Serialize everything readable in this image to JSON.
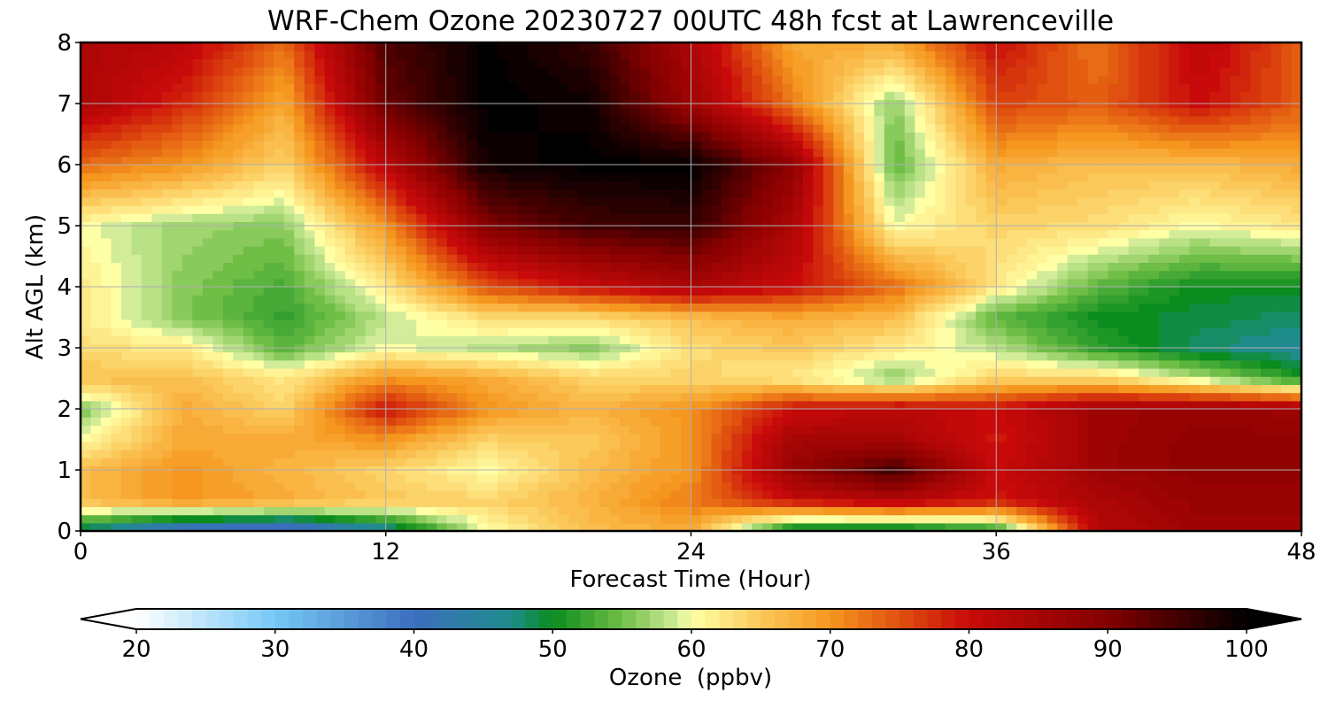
{
  "title": "WRF-Chem Ozone  20230727 00UTC 48h fcst at Lawrenceville",
  "chart_data": {
    "type": "heatmap",
    "title": "WRF-Chem Ozone  20230727 00UTC 48h fcst at Lawrenceville",
    "xlabel": "Forecast Time (Hour)",
    "ylabel": "Alt AGL (km)",
    "xlim": [
      0,
      48
    ],
    "ylim": [
      0,
      8
    ],
    "x_ticks": [
      "0",
      "12",
      "24",
      "36",
      "48"
    ],
    "y_ticks": [
      "0",
      "1",
      "2",
      "3",
      "4",
      "5",
      "6",
      "7",
      "8"
    ],
    "grid": true,
    "x": [
      0,
      4,
      8,
      12,
      16,
      20,
      24,
      28,
      32,
      36,
      40,
      44,
      48
    ],
    "y": [
      0,
      0.5,
      1,
      1.5,
      2,
      2.5,
      3,
      3.5,
      4,
      5,
      6,
      7,
      8
    ],
    "z": [
      [
        47,
        37,
        35,
        45,
        60,
        66,
        68,
        47,
        46,
        50,
        83,
        86,
        86
      ],
      [
        66,
        70,
        68,
        65,
        64,
        67,
        72,
        80,
        83,
        79,
        84,
        87,
        87
      ],
      [
        66,
        70,
        67,
        64,
        60,
        66,
        70,
        87,
        95,
        80,
        86,
        88,
        88
      ],
      [
        60,
        68,
        68,
        70,
        64,
        65,
        70,
        85,
        85,
        79,
        86,
        88,
        88
      ],
      [
        55,
        68,
        64,
        80,
        70,
        67,
        70,
        80,
        82,
        80,
        86,
        87,
        86
      ],
      [
        66,
        66,
        62,
        70,
        68,
        64,
        64,
        62,
        56,
        64,
        64,
        58,
        51
      ],
      [
        63,
        62,
        54,
        60,
        58,
        56,
        63,
        65,
        62,
        58,
        52,
        48,
        46
      ],
      [
        62,
        56,
        52,
        58,
        63,
        63,
        66,
        68,
        66,
        54,
        50,
        49,
        48
      ],
      [
        62,
        56,
        53,
        62,
        75,
        80,
        84,
        80,
        73,
        62,
        54,
        50,
        50
      ],
      [
        60,
        57,
        56,
        70,
        90,
        95,
        96,
        84,
        60,
        64,
        63,
        60,
        62
      ],
      [
        73,
        70,
        64,
        82,
        99,
        100,
        100,
        88,
        54,
        68,
        66,
        66,
        68
      ],
      [
        84,
        78,
        68,
        92,
        100,
        99,
        86,
        72,
        56,
        76,
        74,
        80,
        74
      ],
      [
        84,
        82,
        73,
        94,
        100,
        96,
        84,
        68,
        68,
        80,
        72,
        82,
        74
      ]
    ],
    "colorbar": {
      "label": "Ozone  (ppbv)",
      "min": 20,
      "max": 100,
      "step": 1,
      "extend": "both",
      "ticks": [
        "20",
        "30",
        "40",
        "50",
        "60",
        "70",
        "80",
        "90",
        "100"
      ],
      "colormap": [
        [
          20,
          "#ffffff"
        ],
        [
          30,
          "#76c8f5"
        ],
        [
          40,
          "#3c6ebe"
        ],
        [
          47,
          "#1f8c8c"
        ],
        [
          50,
          "#0a8c1e"
        ],
        [
          55,
          "#6fbe46"
        ],
        [
          59,
          "#d2ec9a"
        ],
        [
          60,
          "#ffffa5"
        ],
        [
          65,
          "#fbc85a"
        ],
        [
          70,
          "#f5961e"
        ],
        [
          75,
          "#e0500f"
        ],
        [
          80,
          "#c80a0a"
        ],
        [
          90,
          "#820000"
        ],
        [
          100,
          "#000000"
        ]
      ]
    }
  }
}
